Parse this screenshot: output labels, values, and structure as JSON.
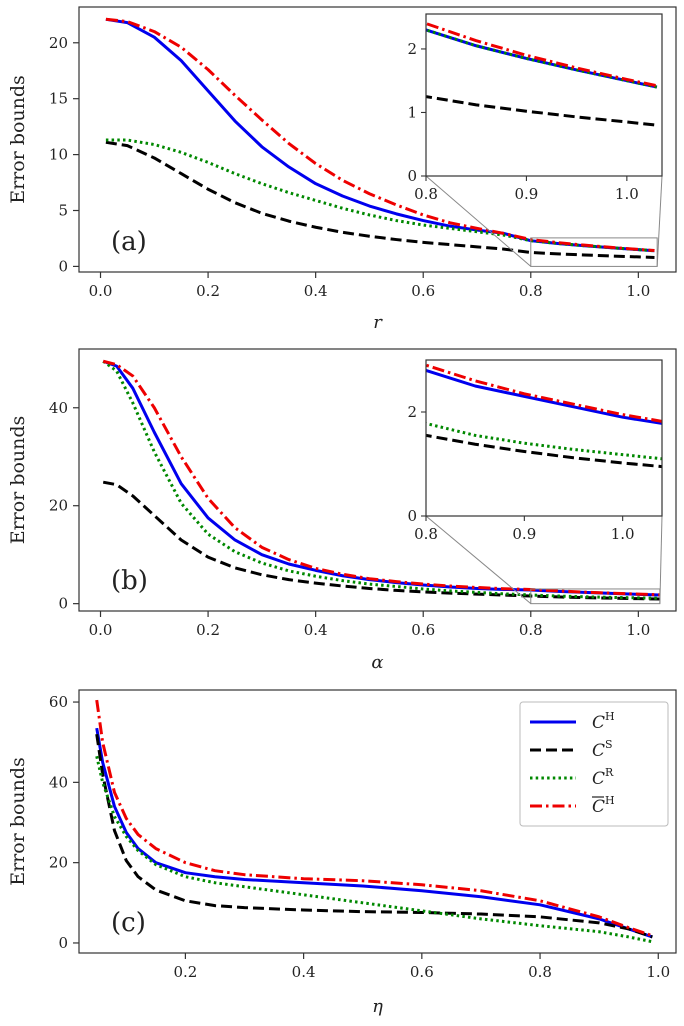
{
  "chart_data": [
    {
      "type": "line",
      "panel_label": "(a)",
      "xlabel": "r",
      "ylabel": "Error bounds",
      "xlim": [
        -0.04,
        1.07
      ],
      "ylim": [
        -0.5,
        23.2
      ],
      "xticks": [
        0.0,
        0.2,
        0.4,
        0.6,
        0.8,
        1.0
      ],
      "xtick_labels": [
        "0.0",
        "0.2",
        "0.4",
        "0.6",
        "0.8",
        "1.0"
      ],
      "yticks": [
        0,
        5,
        10,
        15,
        20
      ],
      "ytick_labels": [
        "0",
        "5",
        "10",
        "15",
        "20"
      ],
      "series": [
        {
          "name": "C^H",
          "color": "#0000ee",
          "dash": "solid",
          "x": [
            0.01,
            0.05,
            0.1,
            0.15,
            0.2,
            0.25,
            0.3,
            0.35,
            0.4,
            0.45,
            0.5,
            0.55,
            0.6,
            0.65,
            0.7,
            0.75,
            0.8,
            0.85,
            0.9,
            0.95,
            1.0,
            1.03
          ],
          "y": [
            22.1,
            21.8,
            20.5,
            18.4,
            15.7,
            13.0,
            10.7,
            8.9,
            7.4,
            6.3,
            5.4,
            4.7,
            4.1,
            3.6,
            3.25,
            2.95,
            2.3,
            2.05,
            1.85,
            1.67,
            1.5,
            1.4
          ]
        },
        {
          "name": "C^S",
          "color": "#000000",
          "dash": "dashed",
          "x": [
            0.01,
            0.05,
            0.1,
            0.15,
            0.2,
            0.25,
            0.3,
            0.35,
            0.4,
            0.45,
            0.5,
            0.55,
            0.6,
            0.65,
            0.7,
            0.75,
            0.8,
            0.85,
            0.9,
            0.95,
            1.0,
            1.03
          ],
          "y": [
            11.1,
            10.8,
            9.7,
            8.3,
            6.9,
            5.7,
            4.75,
            4.05,
            3.5,
            3.05,
            2.7,
            2.4,
            2.15,
            1.95,
            1.75,
            1.55,
            1.25,
            1.12,
            1.02,
            0.93,
            0.85,
            0.8
          ]
        },
        {
          "name": "C^R",
          "color": "#008800",
          "dash": "dotted",
          "x": [
            0.01,
            0.05,
            0.1,
            0.15,
            0.2,
            0.25,
            0.3,
            0.35,
            0.4,
            0.45,
            0.5,
            0.55,
            0.6,
            0.65,
            0.7,
            0.75,
            0.8,
            0.85,
            0.9,
            0.95,
            1.0,
            1.03
          ],
          "y": [
            11.3,
            11.3,
            10.9,
            10.2,
            9.3,
            8.3,
            7.4,
            6.6,
            5.9,
            5.2,
            4.6,
            4.1,
            3.7,
            3.4,
            3.1,
            2.8,
            2.3,
            2.05,
            1.85,
            1.67,
            1.5,
            1.4
          ]
        },
        {
          "name": "C̄^H",
          "color": "#ee0000",
          "dash": "dashdot",
          "x": [
            0.01,
            0.05,
            0.1,
            0.15,
            0.2,
            0.25,
            0.3,
            0.35,
            0.4,
            0.45,
            0.5,
            0.55,
            0.6,
            0.65,
            0.7,
            0.75,
            0.8,
            0.85,
            0.9,
            0.95,
            1.0,
            1.03
          ],
          "y": [
            22.1,
            21.9,
            21.0,
            19.6,
            17.6,
            15.3,
            13.1,
            11.0,
            9.2,
            7.7,
            6.5,
            5.5,
            4.6,
            3.9,
            3.4,
            2.95,
            2.4,
            2.13,
            1.9,
            1.7,
            1.52,
            1.42
          ]
        }
      ],
      "inset": {
        "xlim": [
          0.8,
          1.035
        ],
        "ylim": [
          0,
          2.55
        ],
        "xticks": [
          0.8,
          0.9,
          1.0
        ],
        "xtick_labels": [
          "0.8",
          "0.9",
          "1.0"
        ],
        "yticks": [
          0,
          1,
          2
        ],
        "ytick_labels": [
          "0",
          "1",
          "2"
        ]
      }
    },
    {
      "type": "line",
      "panel_label": "(b)",
      "xlabel": "α",
      "ylabel": "Error bounds",
      "xlim": [
        -0.04,
        1.07
      ],
      "ylim": [
        -1.5,
        52
      ],
      "xticks": [
        0.0,
        0.2,
        0.4,
        0.6,
        0.8,
        1.0
      ],
      "xtick_labels": [
        "0.0",
        "0.2",
        "0.4",
        "0.6",
        "0.8",
        "1.0"
      ],
      "yticks": [
        0,
        20,
        40
      ],
      "ytick_labels": [
        "0",
        "20",
        "40"
      ],
      "series": [
        {
          "name": "C^H",
          "color": "#0000ee",
          "dash": "solid",
          "x": [
            0.005,
            0.03,
            0.06,
            0.1,
            0.15,
            0.2,
            0.25,
            0.3,
            0.35,
            0.4,
            0.45,
            0.5,
            0.55,
            0.6,
            0.65,
            0.7,
            0.75,
            0.8,
            0.85,
            0.9,
            0.95,
            1.0,
            1.04
          ],
          "y": [
            49.5,
            48.5,
            44.0,
            35.0,
            24.5,
            17.5,
            13.0,
            10.0,
            8.1,
            6.8,
            5.7,
            4.9,
            4.3,
            3.8,
            3.4,
            3.1,
            2.9,
            2.8,
            2.5,
            2.3,
            2.1,
            1.9,
            1.78
          ]
        },
        {
          "name": "C^S",
          "color": "#000000",
          "dash": "dashed",
          "x": [
            0.005,
            0.03,
            0.06,
            0.1,
            0.15,
            0.2,
            0.25,
            0.3,
            0.35,
            0.4,
            0.45,
            0.5,
            0.55,
            0.6,
            0.65,
            0.7,
            0.75,
            0.8,
            0.85,
            0.9,
            0.95,
            1.0,
            1.04
          ],
          "y": [
            24.8,
            24.3,
            22.0,
            18.0,
            13.0,
            9.5,
            7.3,
            5.9,
            4.9,
            4.2,
            3.6,
            3.1,
            2.7,
            2.4,
            2.15,
            1.95,
            1.75,
            1.55,
            1.38,
            1.24,
            1.12,
            1.02,
            0.95
          ]
        },
        {
          "name": "C^R",
          "color": "#008800",
          "dash": "dotted",
          "x": [
            0.005,
            0.03,
            0.06,
            0.1,
            0.15,
            0.2,
            0.25,
            0.3,
            0.35,
            0.4,
            0.45,
            0.5,
            0.55,
            0.6,
            0.65,
            0.7,
            0.75,
            0.8,
            0.85,
            0.9,
            0.95,
            1.0,
            1.04
          ],
          "y": [
            49.5,
            47.5,
            41.0,
            31.0,
            20.5,
            14.2,
            10.6,
            8.3,
            6.7,
            5.6,
            4.7,
            4.0,
            3.5,
            3.0,
            2.6,
            2.3,
            2.0,
            1.78,
            1.55,
            1.4,
            1.28,
            1.18,
            1.1
          ]
        },
        {
          "name": "C̄^H",
          "color": "#ee0000",
          "dash": "dashdot",
          "x": [
            0.005,
            0.03,
            0.06,
            0.1,
            0.15,
            0.2,
            0.25,
            0.3,
            0.35,
            0.4,
            0.45,
            0.5,
            0.55,
            0.6,
            0.65,
            0.7,
            0.75,
            0.8,
            0.85,
            0.9,
            0.95,
            1.0,
            1.04
          ],
          "y": [
            49.5,
            48.8,
            46.5,
            40.0,
            30.0,
            21.5,
            15.5,
            11.5,
            9.0,
            7.2,
            6.0,
            5.1,
            4.5,
            4.0,
            3.6,
            3.3,
            3.05,
            2.9,
            2.6,
            2.35,
            2.15,
            1.95,
            1.82
          ]
        }
      ],
      "inset": {
        "xlim": [
          0.8,
          1.04
        ],
        "ylim": [
          0,
          3.0
        ],
        "xticks": [
          0.8,
          0.9,
          1.0
        ],
        "xtick_labels": [
          "0.8",
          "0.9",
          "1.0"
        ],
        "yticks": [
          0,
          2
        ],
        "ytick_labels": [
          "0",
          "2"
        ]
      }
    },
    {
      "type": "line",
      "panel_label": "(c)",
      "xlabel": "η",
      "ylabel": "Error bounds",
      "xlim": [
        0.02,
        1.03
      ],
      "ylim": [
        -2.5,
        63
      ],
      "xticks": [
        0.2,
        0.4,
        0.6,
        0.8,
        1.0
      ],
      "xtick_labels": [
        "0.2",
        "0.4",
        "0.6",
        "0.8",
        "1.0"
      ],
      "yticks": [
        0,
        20,
        40,
        60
      ],
      "ytick_labels": [
        "0",
        "20",
        "40",
        "60"
      ],
      "legend_position": "top-right",
      "legend": [
        "C",
        "C",
        "C",
        "C"
      ],
      "legend_superscripts": [
        "H",
        "S",
        "R",
        "H"
      ],
      "series": [
        {
          "name": "C^H",
          "color": "#0000ee",
          "dash": "solid",
          "x": [
            0.05,
            0.06,
            0.08,
            0.1,
            0.12,
            0.15,
            0.2,
            0.25,
            0.3,
            0.4,
            0.5,
            0.6,
            0.7,
            0.8,
            0.9,
            0.95,
            0.99
          ],
          "y": [
            53.5,
            45.0,
            34.0,
            27.5,
            23.5,
            20.0,
            17.5,
            16.5,
            15.8,
            15.0,
            14.2,
            13.0,
            11.5,
            9.5,
            6.0,
            3.5,
            1.5
          ]
        },
        {
          "name": "C^S",
          "color": "#000000",
          "dash": "dashed",
          "x": [
            0.05,
            0.06,
            0.08,
            0.1,
            0.12,
            0.15,
            0.2,
            0.25,
            0.3,
            0.4,
            0.5,
            0.6,
            0.7,
            0.8,
            0.9,
            0.95,
            0.99
          ],
          "y": [
            52.0,
            42.0,
            28.0,
            20.5,
            16.5,
            13.2,
            10.5,
            9.3,
            8.8,
            8.2,
            7.8,
            7.6,
            7.2,
            6.5,
            5.0,
            3.5,
            1.5
          ]
        },
        {
          "name": "C^R",
          "color": "#008800",
          "dash": "dotted",
          "x": [
            0.05,
            0.06,
            0.08,
            0.1,
            0.12,
            0.15,
            0.2,
            0.25,
            0.3,
            0.4,
            0.5,
            0.6,
            0.7,
            0.8,
            0.9,
            0.95,
            0.99
          ],
          "y": [
            46.5,
            40.0,
            31.5,
            26.5,
            23.0,
            19.5,
            16.5,
            15.0,
            14.0,
            12.0,
            10.0,
            8.0,
            6.0,
            4.3,
            2.8,
            1.5,
            0.3
          ]
        },
        {
          "name": "C̄^H",
          "color": "#ee0000",
          "dash": "dashdot",
          "x": [
            0.05,
            0.06,
            0.08,
            0.1,
            0.12,
            0.15,
            0.2,
            0.25,
            0.3,
            0.4,
            0.5,
            0.6,
            0.7,
            0.8,
            0.9,
            0.95,
            0.99
          ],
          "y": [
            60.5,
            50.0,
            37.5,
            31.0,
            27.0,
            23.5,
            20.0,
            18.0,
            17.0,
            16.0,
            15.5,
            14.5,
            13.0,
            10.5,
            6.5,
            3.8,
            1.8
          ]
        }
      ]
    }
  ]
}
